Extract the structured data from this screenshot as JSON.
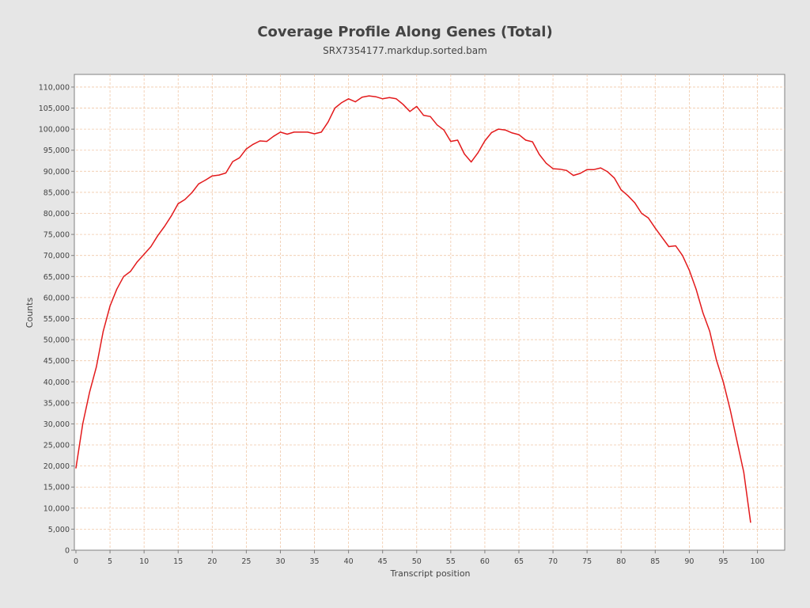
{
  "chart_data": {
    "type": "line",
    "title": "Coverage Profile Along Genes (Total)",
    "subtitle": "SRX7354177.markdup.sorted.bam",
    "xlabel": "Transcript position",
    "ylabel": "Counts",
    "xlim": [
      0,
      104
    ],
    "ylim": [
      0,
      113000
    ],
    "x_ticks": [
      0,
      5,
      10,
      15,
      20,
      25,
      30,
      35,
      40,
      45,
      50,
      55,
      60,
      65,
      70,
      75,
      80,
      85,
      90,
      95,
      100
    ],
    "y_ticks": [
      0,
      5000,
      10000,
      15000,
      20000,
      25000,
      30000,
      35000,
      40000,
      45000,
      50000,
      55000,
      60000,
      65000,
      70000,
      75000,
      80000,
      85000,
      90000,
      95000,
      100000,
      105000,
      110000
    ],
    "y_tick_labels": [
      "0",
      "5,000",
      "10,000",
      "15,000",
      "20,000",
      "25,000",
      "30,000",
      "35,000",
      "40,000",
      "45,000",
      "50,000",
      "55,000",
      "60,000",
      "65,000",
      "70,000",
      "75,000",
      "80,000",
      "85,000",
      "90,000",
      "95,000",
      "100,000",
      "105,000",
      "110,000"
    ],
    "grid": true,
    "legend": "none",
    "colors": {
      "line": "#e31a1c",
      "grid": "#f0c8a8",
      "plot_bg": "#ffffff",
      "page_bg": "#e6e6e6"
    },
    "series": [
      {
        "x": [
          0,
          1,
          2,
          3,
          4,
          5,
          6,
          7,
          8,
          9,
          10,
          11,
          12,
          13,
          14,
          15,
          16,
          17,
          18,
          19,
          20,
          21,
          22,
          23,
          24,
          25,
          26,
          27,
          28,
          29,
          30,
          31,
          32,
          33,
          34,
          35,
          36,
          37,
          38,
          39,
          40,
          41,
          42,
          43,
          44,
          45,
          46,
          47,
          48,
          49,
          50,
          51,
          52,
          53,
          54,
          55,
          56,
          57,
          58,
          59,
          60,
          61,
          62,
          63,
          64,
          65,
          66,
          67,
          68,
          69,
          70,
          71,
          72,
          73,
          74,
          75,
          76,
          77,
          78,
          79,
          80,
          81,
          82,
          83,
          84,
          85,
          86,
          87,
          88,
          89,
          90,
          91,
          92,
          93,
          94,
          95,
          96,
          97,
          98,
          99
        ],
        "values": [
          19500,
          30000,
          37500,
          43500,
          52000,
          58000,
          62000,
          65000,
          66200,
          68500,
          70300,
          72100,
          74700,
          76900,
          79400,
          82300,
          83300,
          84900,
          87000,
          87900,
          88900,
          89100,
          89600,
          92300,
          93200,
          95300,
          96400,
          97200,
          97100,
          98300,
          99300,
          98800,
          99300,
          99300,
          99300,
          98900,
          99300,
          101700,
          105000,
          106300,
          107200,
          106500,
          107600,
          107900,
          107700,
          107200,
          107500,
          107200,
          105900,
          104200,
          105400,
          103300,
          103000,
          101000,
          99800,
          97100,
          97400,
          94100,
          92200,
          94400,
          97200,
          99200,
          100000,
          99800,
          99100,
          98700,
          97400,
          97000,
          94000,
          91900,
          90600,
          90500,
          90200,
          89000,
          89500,
          90400,
          90400,
          90800,
          89900,
          88400,
          85600,
          84200,
          82500,
          80000,
          78900,
          76500,
          74300,
          72100,
          72300,
          70000,
          66500,
          62000,
          56400,
          52000,
          45100,
          39900,
          33400,
          25900,
          18500,
          6600
        ]
      }
    ]
  }
}
